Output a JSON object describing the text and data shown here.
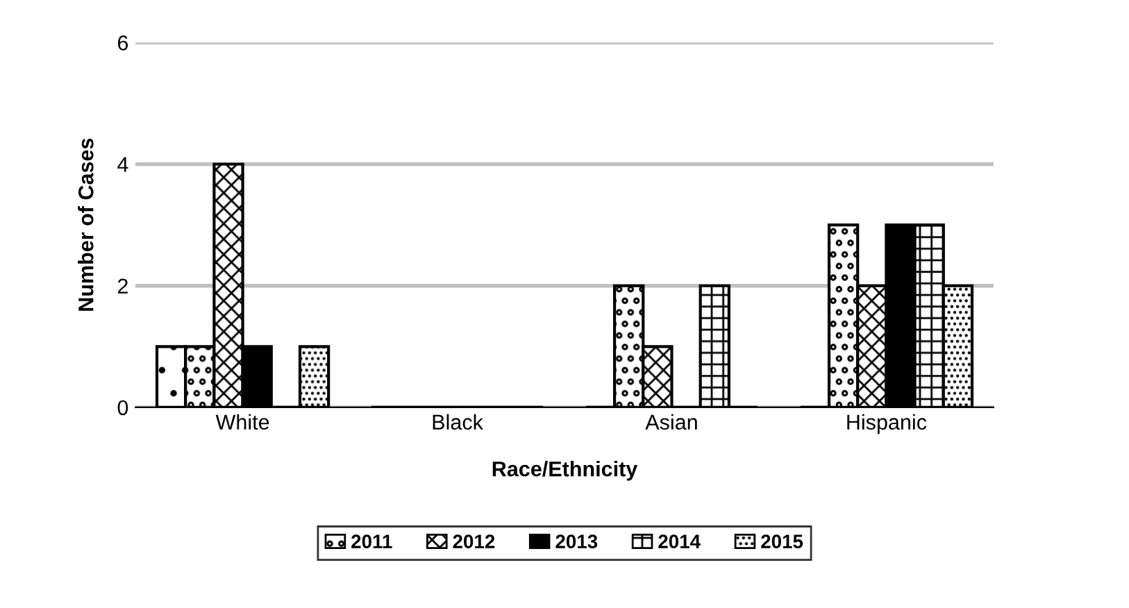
{
  "chart_data": {
    "type": "bar",
    "xlabel": "Race/Ethnicity",
    "ylabel": "Number of Cases",
    "categories": [
      "White",
      "Black",
      "Asian",
      "Hispanic"
    ],
    "series": [
      {
        "color": "#000000",
        "values": [
          1,
          0,
          0,
          0
        ]
      },
      {
        "name": "2011",
        "color": "#000000",
        "values": [
          1,
          0,
          2,
          3
        ]
      },
      {
        "name": "2012",
        "color": "#000000",
        "values": [
          4,
          0,
          1,
          2
        ]
      },
      {
        "name": "2013",
        "color": "#000000",
        "values": [
          1,
          0,
          0,
          3
        ]
      },
      {
        "name": "2014",
        "color": "#000000",
        "values": [
          0,
          0,
          2,
          3
        ]
      },
      {
        "name": "2015",
        "color": "#000000",
        "values": [
          1,
          0,
          0,
          2
        ]
      }
    ],
    "ylim": [
      0,
      6
    ],
    "yticks": [
      0,
      2,
      4,
      6
    ],
    "grid": "y",
    "legend": "bottom"
  }
}
